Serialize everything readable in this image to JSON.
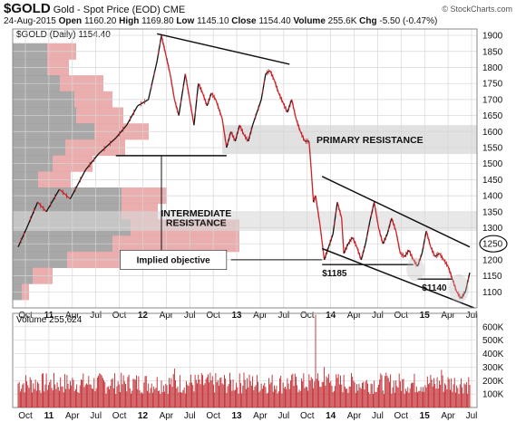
{
  "header": {
    "symbol": "$GOLD",
    "name": "Gold - Spot Price (EOD)",
    "exchange": "CME",
    "date": "24-Aug-2015",
    "open_label": "Open",
    "open": "1160.20",
    "high_label": "High",
    "high": "1169.80",
    "low_label": "Low",
    "low": "1145.10",
    "close_label": "Close",
    "close": "1154.40",
    "volume_label": "Volume",
    "volume": "255.6K",
    "chg_label": "Chg",
    "chg": "-5.50 (-0.47%)",
    "brand": "© StockCharts.com"
  },
  "chart_data": [
    {
      "type": "line",
      "legend": "$GOLD (Daily) 1154.40",
      "ylim": [
        1050,
        1920
      ],
      "y_ticks": [
        1100,
        1150,
        1200,
        1250,
        1300,
        1350,
        1400,
        1450,
        1500,
        1550,
        1600,
        1650,
        1700,
        1750,
        1800,
        1850,
        1900
      ],
      "x_ticks": [
        "Oct",
        "11",
        "Apr",
        "Jul",
        "Oct",
        "12",
        "Apr",
        "Jul",
        "Oct",
        "13",
        "Apr",
        "Jul",
        "Oct",
        "14",
        "Apr",
        "Jul",
        "Oct",
        "15",
        "Apr",
        "Jul"
      ],
      "x_ticks_bold": [
        "11",
        "12",
        "13",
        "14",
        "15"
      ],
      "price_series": [
        [
          0,
          1240
        ],
        [
          4,
          1300
        ],
        [
          9,
          1380
        ],
        [
          13,
          1350
        ],
        [
          19,
          1420
        ],
        [
          24,
          1390
        ],
        [
          31,
          1480
        ],
        [
          37,
          1530
        ],
        [
          45,
          1580
        ],
        [
          50,
          1620
        ],
        [
          55,
          1680
        ],
        [
          60,
          1700
        ],
        [
          64,
          1820
        ],
        [
          66,
          1900
        ],
        [
          68,
          1840
        ],
        [
          70,
          1780
        ],
        [
          72,
          1700
        ],
        [
          74,
          1650
        ],
        [
          77,
          1780
        ],
        [
          79,
          1700
        ],
        [
          81,
          1620
        ],
        [
          83,
          1750
        ],
        [
          85,
          1720
        ],
        [
          87,
          1680
        ],
        [
          89,
          1720
        ],
        [
          91,
          1700
        ],
        [
          94,
          1640
        ],
        [
          96,
          1550
        ],
        [
          98,
          1600
        ],
        [
          100,
          1570
        ],
        [
          102,
          1620
        ],
        [
          104,
          1590
        ],
        [
          106,
          1570
        ],
        [
          108,
          1620
        ],
        [
          112,
          1700
        ],
        [
          114,
          1780
        ],
        [
          116,
          1790
        ],
        [
          118,
          1760
        ],
        [
          120,
          1720
        ],
        [
          122,
          1690
        ],
        [
          124,
          1660
        ],
        [
          126,
          1700
        ],
        [
          128,
          1640
        ],
        [
          130,
          1600
        ],
        [
          132,
          1570
        ],
        [
          134,
          1570
        ],
        [
          135,
          1480
        ],
        [
          136,
          1380
        ],
        [
          137,
          1400
        ],
        [
          139,
          1310
        ],
        [
          141,
          1200
        ],
        [
          143,
          1240
        ],
        [
          145,
          1280
        ],
        [
          147,
          1380
        ],
        [
          149,
          1330
        ],
        [
          150,
          1220
        ],
        [
          152,
          1250
        ],
        [
          154,
          1270
        ],
        [
          156,
          1240
        ],
        [
          158,
          1200
        ],
        [
          160,
          1250
        ],
        [
          162,
          1320
        ],
        [
          164,
          1380
        ],
        [
          166,
          1300
        ],
        [
          168,
          1250
        ],
        [
          170,
          1280
        ],
        [
          172,
          1330
        ],
        [
          174,
          1290
        ],
        [
          176,
          1220
        ],
        [
          178,
          1210
        ],
        [
          180,
          1230
        ],
        [
          182,
          1200
        ],
        [
          184,
          1180
        ],
        [
          186,
          1220
        ],
        [
          188,
          1290
        ],
        [
          190,
          1240
        ],
        [
          192,
          1210
        ],
        [
          194,
          1220
        ],
        [
          196,
          1200
        ],
        [
          198,
          1180
        ],
        [
          200,
          1140
        ],
        [
          202,
          1100
        ],
        [
          204,
          1080
        ],
        [
          206,
          1100
        ],
        [
          208,
          1160
        ]
      ],
      "price_y_values": "close",
      "annotations": {
        "primary_resistance": {
          "label": "PRIMARY RESISTANCE",
          "range": [
            1530,
            1620
          ]
        },
        "intermediate_resistance": {
          "label": "INTERMEDIATE\nRESISTANCE",
          "range": [
            1290,
            1350
          ]
        },
        "implied_objective": {
          "label": "Implied objective",
          "range": [
            1170,
            1230
          ]
        },
        "support_1185": {
          "label": "$1185",
          "value": 1185
        },
        "support_1140": {
          "label": "$1140",
          "value": 1140
        },
        "circled_level": {
          "label": "1250",
          "value": 1250
        },
        "neckline": {
          "value": 1525
        }
      },
      "volume_by_price": [
        {
          "price_range": [
            1830,
            1870
          ],
          "down": 38,
          "up": 32
        },
        {
          "price_range": [
            1780,
            1820
          ],
          "down": 38,
          "up": 24
        },
        {
          "price_range": [
            1730,
            1770
          ],
          "down": 52,
          "up": 48
        },
        {
          "price_range": [
            1680,
            1720
          ],
          "down": 68,
          "up": 42
        },
        {
          "price_range": [
            1630,
            1670
          ],
          "down": 70,
          "up": 52
        },
        {
          "price_range": [
            1580,
            1620
          ],
          "down": 90,
          "up": 60
        },
        {
          "price_range": [
            1530,
            1570
          ],
          "down": 58,
          "up": 66
        },
        {
          "price_range": [
            1480,
            1520
          ],
          "down": 44,
          "up": 44
        },
        {
          "price_range": [
            1430,
            1470
          ],
          "down": 28,
          "up": 36
        },
        {
          "price_range": [
            1380,
            1420
          ],
          "down": 120,
          "up": 50
        },
        {
          "price_range": [
            1330,
            1370
          ],
          "down": 120,
          "up": 40
        },
        {
          "price_range": [
            1280,
            1320
          ],
          "down": 130,
          "up": 120
        },
        {
          "price_range": [
            1230,
            1270
          ],
          "down": 110,
          "up": 140
        },
        {
          "price_range": [
            1180,
            1220
          ],
          "down": 60,
          "up": 110
        },
        {
          "price_range": [
            1130,
            1170
          ],
          "down": 22,
          "up": 22
        },
        {
          "price_range": [
            1080,
            1120
          ],
          "down": 10,
          "up": 8
        }
      ]
    },
    {
      "type": "bar",
      "legend": "Volume 255,624",
      "ylim": [
        0,
        700000
      ],
      "y_ticks": [
        "100K",
        "200K",
        "300K",
        "400K",
        "500K",
        "600K"
      ],
      "y_tick_values": [
        100000,
        200000,
        300000,
        400000,
        500000,
        600000
      ],
      "typical_volume_range": [
        100000,
        260000
      ],
      "spikes": [
        {
          "x": 72,
          "value": 290000
        },
        {
          "x": 104,
          "value": 260000
        },
        {
          "x": 137,
          "value": 690000
        },
        {
          "x": 141,
          "value": 300000
        },
        {
          "x": 143,
          "value": 250000
        },
        {
          "x": 195,
          "value": 280000
        }
      ]
    }
  ],
  "colors": {
    "up": "#111111",
    "down": "#cc2229",
    "vbp_up": "#999999",
    "vbp_down": "#e8a0a0",
    "grid": "#d6d6d6",
    "resistance_band": "#d9d9d9",
    "volume_bar": "#c0272d"
  }
}
